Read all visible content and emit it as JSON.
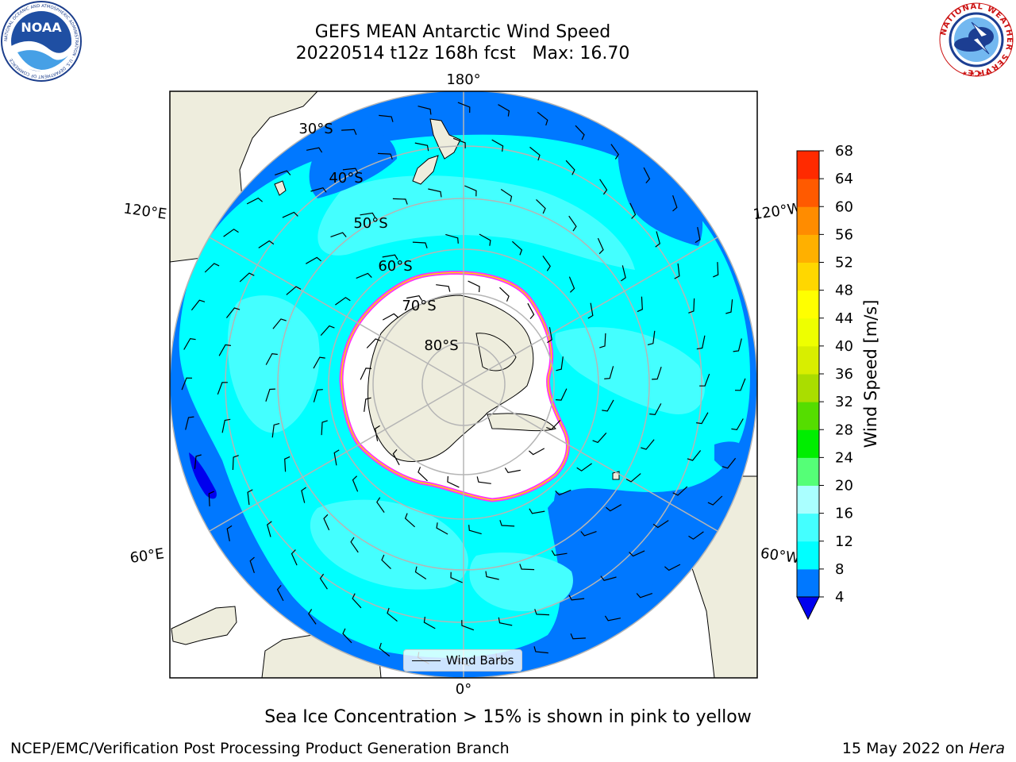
{
  "title": {
    "line1": "GEFS MEAN Antarctic Wind Speed",
    "line2": "20220514 t12z 168h fcst   Max: 16.70"
  },
  "logos": {
    "left": {
      "text": "NOAA",
      "ring_text": "NATIONAL OCEANIC AND ATMOSPHERIC ADMINISTRATION · U.S. DEPARTMENT OF COMMERCE",
      "icon": "noaa-logo"
    },
    "right": {
      "ring_text": "NATIONAL WEATHER SERVICE",
      "icon": "nws-logo"
    }
  },
  "map": {
    "projection": "south-polar-stereographic",
    "longitude_labels": [
      "180°",
      "120°E",
      "120°W",
      "60°E",
      "60°W",
      "0°"
    ],
    "latitude_labels": [
      "30°S",
      "40°S",
      "50°S",
      "60°S",
      "70°S",
      "80°S"
    ],
    "colors": {
      "land": "#eeeddd",
      "sea_ice": "#ffffff",
      "ice_edge": [
        "#ff33ff",
        "#ffd700"
      ],
      "gridline": "#b5b5b5"
    },
    "legend": {
      "label": "Wind Barbs",
      "icon": "wind-barb-icon"
    }
  },
  "colorbar": {
    "label": "Wind Speed [m/s]",
    "ticks": [
      "4",
      "8",
      "12",
      "16",
      "20",
      "24",
      "28",
      "32",
      "36",
      "40",
      "44",
      "48",
      "52",
      "56",
      "60",
      "64",
      "68"
    ],
    "colors": [
      "#0078ff",
      "#00ffff",
      "#44ffff",
      "#aaffff",
      "#55ff77",
      "#00ee00",
      "#55dd00",
      "#aadd00",
      "#d8ee00",
      "#eeff00",
      "#ffff00",
      "#ffd700",
      "#ffb000",
      "#ff8c00",
      "#ff5a00",
      "#ff2a00",
      "#ff0000"
    ],
    "under_color": "#0000ee"
  },
  "footer": {
    "note": "Sea Ice Concentration > 15% is shown in pink to yellow",
    "branch": "NCEP/EMC/Verification Post Processing Product Generation Branch",
    "date": "15 May 2022 on",
    "host": "Hera"
  }
}
